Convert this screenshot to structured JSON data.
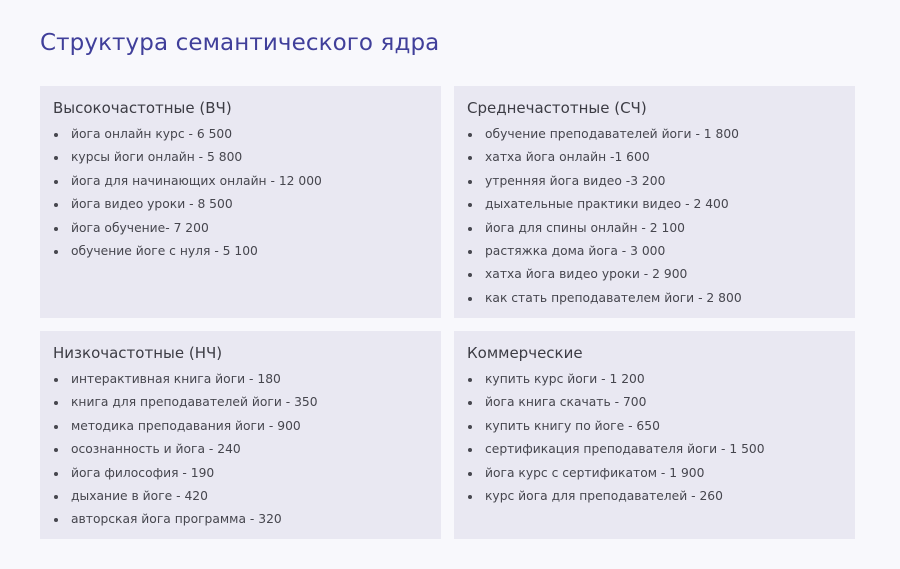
{
  "title": "Структура семантического ядра",
  "cards": [
    {
      "heading": "Высокочастотные (ВЧ)",
      "items": [
        "йога онлайн курс - 6 500",
        "курсы йоги онлайн - 5 800",
        "йога для начинающих онлайн - 12 000",
        "йога видео уроки - 8 500",
        "йога обучение- 7 200",
        "обучение йоге с нуля - 5 100"
      ]
    },
    {
      "heading": "Среднечастотные (СЧ)",
      "items": [
        "обучение преподавателей йоги - 1 800",
        "хатха йога онлайн -1 600",
        "утренняя йога видео -3 200",
        "дыхательные практики видео - 2 400",
        "йога для спины онлайн - 2 100",
        "растяжка дома йога - 3 000",
        "хатха йога видео уроки - 2 900",
        "как стать преподавателем йоги - 2 800"
      ]
    },
    {
      "heading": "Низкочастотные (НЧ)",
      "items": [
        "интерактивная книга йоги - 180",
        "книга для преподавателей йоги - 350",
        "методика преподавания йоги - 900",
        "осознанность и йога - 240",
        "йога философия - 190",
        "дыхание в йоге - 420",
        "авторская йога программа - 320"
      ]
    },
    {
      "heading": "Коммерческие",
      "items": [
        "купить курс йоги - 1 200",
        "йога книга скачать - 700",
        "купить книгу по йоге - 650",
        "сертификация преподавателя йоги - 1 500",
        "йога курс с сертификатом - 1 900",
        "курс йога для преподавателей - 260"
      ]
    }
  ]
}
